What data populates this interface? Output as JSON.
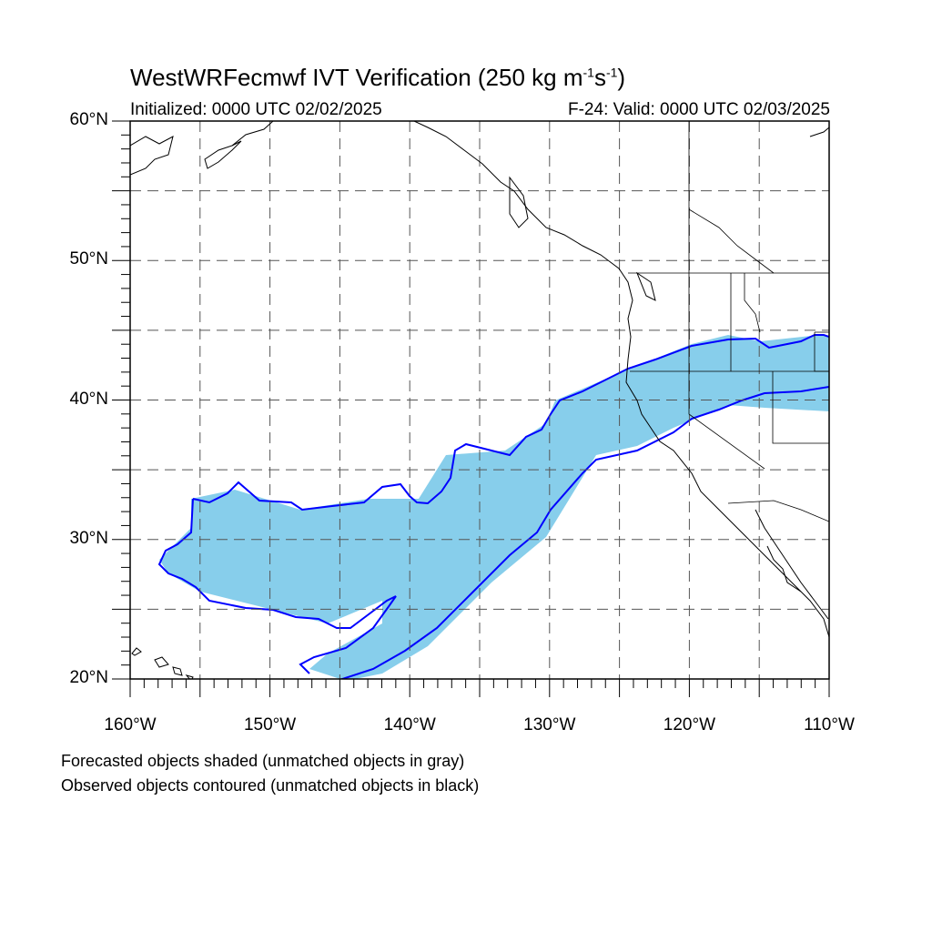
{
  "title": {
    "main": "WestWRFecmwf IVT Verification (250 kg m",
    "exp1": "-1",
    "mid": "s",
    "exp2": "-1",
    "close": ")"
  },
  "subtitle": {
    "initialized": "Initialized: 0000 UTC 02/02/2025",
    "valid": "F-24: Valid: 0000 UTC 02/03/2025"
  },
  "axes": {
    "lat_labels": [
      "60°N",
      "50°N",
      "40°N",
      "30°N",
      "20°N"
    ],
    "lon_labels": [
      "160°W",
      "150°W",
      "140°W",
      "130°W",
      "120°W",
      "110°W"
    ],
    "lat_range": [
      20,
      60
    ],
    "lon_range": [
      -160,
      -110
    ],
    "grid": "dashed every 5 degrees"
  },
  "notes": [
    "Forecasted objects shaded (unmatched objects in gray)",
    "Observed objects contoured (unmatched objects in black)"
  ],
  "colors": {
    "forecast_fill": "#87ceeb",
    "observed_contour": "#0000ff",
    "coastline": "#000000",
    "grid": "#555555"
  }
}
